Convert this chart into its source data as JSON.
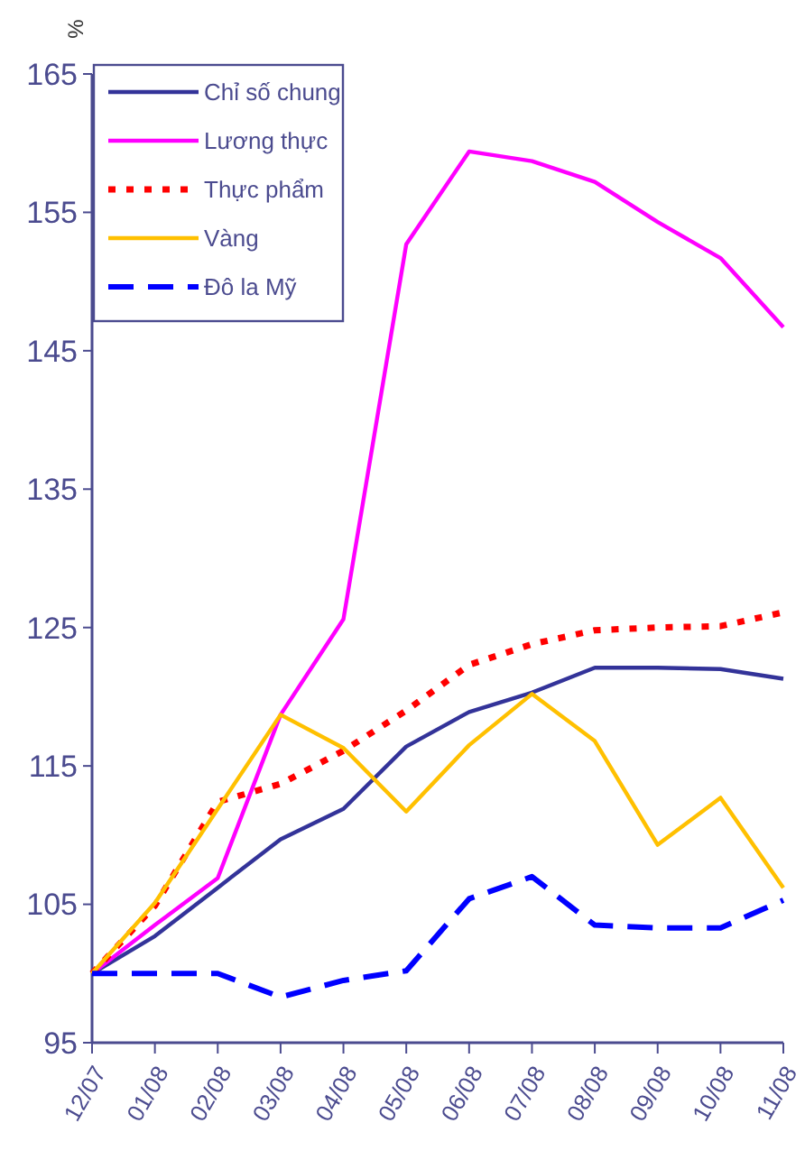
{
  "chart_data": {
    "type": "line",
    "ylabel": "%",
    "categories": [
      "12/07",
      "01/08",
      "02/08",
      "03/08",
      "04/08",
      "05/08",
      "06/08",
      "07/08",
      "08/08",
      "09/08",
      "10/08",
      "11/08"
    ],
    "ylim": [
      95,
      165
    ],
    "yticks": [
      95,
      105,
      115,
      125,
      135,
      145,
      155,
      165
    ],
    "grid": false,
    "legend": "top left",
    "marker": "none",
    "series": [
      {
        "name": "Chỉ số chung",
        "color": "#333399",
        "line_style": "solid",
        "values": [
          100,
          102.7,
          106.2,
          109.7,
          111.9,
          116.4,
          118.9,
          120.3,
          122.1,
          122.1,
          122,
          121.3
        ]
      },
      {
        "name": "Lương thực",
        "color": "#ff00ff",
        "line_style": "solid",
        "values": [
          100,
          103.5,
          106.9,
          118.7,
          125.6,
          152.7,
          159.4,
          158.7,
          157.2,
          154.3,
          151.7,
          146.7
        ]
      },
      {
        "name": "Thực phẩm",
        "color": "#ff0000",
        "line_style": "dotted",
        "values": [
          100,
          104.9,
          112.4,
          113.7,
          116.1,
          119,
          122.3,
          123.8,
          124.8,
          125,
          125.1,
          126.1
        ]
      },
      {
        "name": "Vàng",
        "color": "#ffc000",
        "line_style": "solid",
        "values": [
          100,
          105.1,
          111.9,
          118.7,
          116.3,
          111.7,
          116.5,
          120.2,
          116.8,
          109.3,
          112.7,
          106.2
        ]
      },
      {
        "name": "Đô la Mỹ",
        "color": "#0000ff",
        "line_style": "dashed",
        "values": [
          100,
          100,
          100,
          98.3,
          99.5,
          100.2,
          105.4,
          107,
          103.5,
          103.3,
          103.3,
          105.3
        ]
      }
    ]
  }
}
